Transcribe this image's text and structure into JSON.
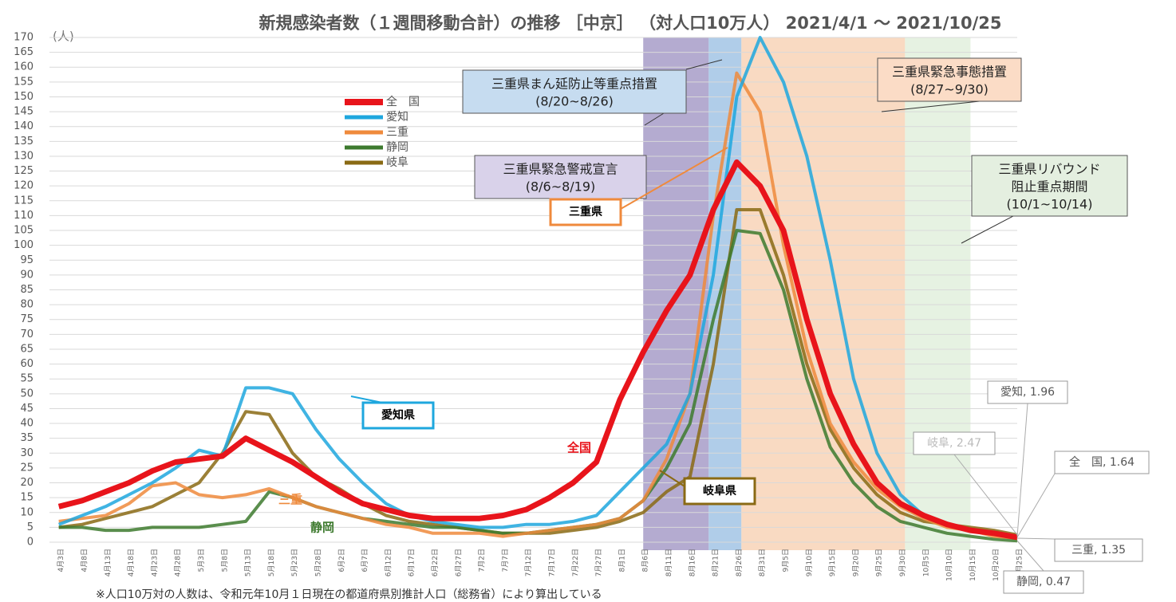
{
  "chart_data": {
    "type": "line",
    "title": "新規感染者数（１週間移動合計）の推移 ［中京］ （対人口10万人） 2021/4/1 ～ 2021/10/25",
    "y_unit": "(人)",
    "footnote": "※人口10万対の人数は、令和元年10月１日現在の都道府県別推計人口（総務省）により算出している",
    "categories": [
      "4月3日",
      "4月8日",
      "4月13日",
      "4月18日",
      "4月23日",
      "4月28日",
      "5月3日",
      "5月8日",
      "5月13日",
      "5月18日",
      "5月23日",
      "5月28日",
      "6月2日",
      "6月7日",
      "6月12日",
      "6月17日",
      "6月22日",
      "6月27日",
      "7月2日",
      "7月7日",
      "7月12日",
      "7月17日",
      "7月22日",
      "7月27日",
      "8月1日",
      "8月6日",
      "8月11日",
      "8月16日",
      "8月21日",
      "8月26日",
      "8月31日",
      "9月5日",
      "9月10日",
      "9月15日",
      "9月20日",
      "9月25日",
      "9月30日",
      "10月5日",
      "10月10日",
      "10月15日",
      "10月20日",
      "10月25日"
    ],
    "series": [
      {
        "name": "全　国",
        "color": "#e8141b",
        "width": 7,
        "end_label": "全　国, 1.64",
        "values": [
          12,
          14,
          17,
          20,
          24,
          27,
          28,
          29,
          35,
          31,
          27,
          22,
          17,
          13,
          11,
          9,
          8,
          8,
          8,
          9,
          11,
          15,
          20,
          27,
          48,
          64,
          78,
          90,
          112,
          128,
          120,
          105,
          75,
          50,
          33,
          20,
          13,
          9,
          6,
          4,
          3,
          1.64
        ]
      },
      {
        "name": "愛知",
        "color": "#1ea7de",
        "width": 4,
        "end_label": "愛知, 1.96",
        "values": [
          6,
          9,
          12,
          16,
          20,
          25,
          31,
          29,
          52,
          52,
          50,
          38,
          28,
          20,
          13,
          9,
          7,
          6,
          5,
          5,
          6,
          6,
          7,
          9,
          17,
          25,
          33,
          50,
          90,
          150,
          170,
          155,
          130,
          95,
          55,
          30,
          16,
          9,
          6,
          4,
          3,
          1.96
        ]
      },
      {
        "name": "三重",
        "color": "#ef8a3c",
        "width": 4,
        "end_label": "三重, 1.35",
        "values": [
          7,
          8,
          9,
          13,
          19,
          20,
          16,
          15,
          16,
          18,
          15,
          12,
          10,
          8,
          6,
          5,
          3,
          3,
          3,
          2,
          3,
          4,
          5,
          6,
          8,
          14,
          28,
          50,
          110,
          158,
          145,
          100,
          65,
          40,
          27,
          18,
          12,
          8,
          5,
          4,
          2,
          1.35
        ]
      },
      {
        "name": "静岡",
        "color": "#3d7a2e",
        "width": 4,
        "end_label": "静岡, 0.47",
        "values": [
          5,
          5,
          4,
          4,
          5,
          5,
          5,
          6,
          7,
          17,
          15,
          12,
          10,
          8,
          7,
          6,
          5,
          5,
          4,
          3,
          3,
          4,
          5,
          6,
          8,
          14,
          25,
          40,
          75,
          105,
          104,
          85,
          55,
          32,
          20,
          12,
          7,
          5,
          3,
          2,
          1,
          0.47
        ]
      },
      {
        "name": "岐阜",
        "color": "#8a6a14",
        "width": 4,
        "end_label": "岐阜, 2.47",
        "values": [
          5,
          6,
          8,
          10,
          12,
          16,
          20,
          30,
          44,
          43,
          30,
          22,
          18,
          13,
          9,
          7,
          6,
          5,
          4,
          3,
          3,
          3,
          4,
          5,
          7,
          10,
          17,
          22,
          60,
          112,
          112,
          90,
          60,
          38,
          25,
          16,
          10,
          7,
          6,
          5,
          4,
          2.47
        ]
      }
    ],
    "ylim": [
      0,
      170
    ],
    "yticks": [
      0,
      5,
      10,
      15,
      20,
      25,
      30,
      35,
      40,
      45,
      50,
      55,
      60,
      65,
      70,
      75,
      80,
      85,
      90,
      95,
      100,
      105,
      110,
      115,
      120,
      125,
      130,
      135,
      140,
      145,
      150,
      155,
      160,
      165,
      170
    ],
    "grid": true,
    "bands": [
      {
        "lines": [
          "三重県緊急警戒宣言",
          "(8/6~8/19)"
        ],
        "color": "#9b8fc0",
        "box": "#d9d2ea"
      },
      {
        "lines": [
          "三重県まん延防止等重点措置",
          "(8/20~8/26)"
        ],
        "color": "#8fb8e0",
        "box": "#c6dcf0"
      },
      {
        "lines": [
          "三重県緊急事態措置",
          "(8/27~9/30)"
        ],
        "color": "#f7cba8",
        "box": "#fbdcc6"
      },
      {
        "lines": [
          "三重県リバウンド",
          "阻止重点期間",
          "(10/1~10/14)"
        ],
        "color": "#dcecd6",
        "box": "#e4efe0"
      }
    ],
    "annotations": [
      {
        "text": "三重県",
        "color": "#ef8a3c"
      },
      {
        "text": "愛知県",
        "color": "#1ea7de"
      },
      {
        "text": "岐阜県",
        "color": "#8a6a14"
      },
      {
        "text": "全国",
        "color": "#e8141b"
      },
      {
        "text": "三重",
        "color": "#ef8a3c"
      },
      {
        "text": "静岡",
        "color": "#3d7a2e"
      }
    ]
  }
}
